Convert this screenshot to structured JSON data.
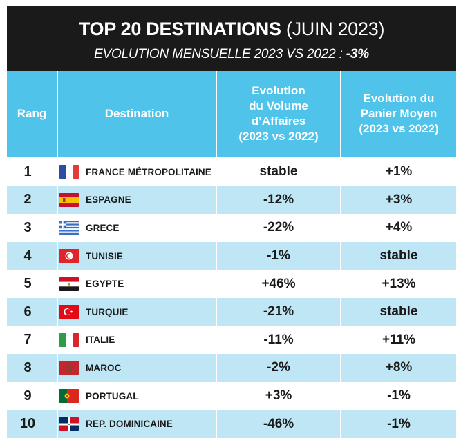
{
  "title": {
    "bold": "TOP 20 DESTINATIONS",
    "light": " (JUIN 2023)"
  },
  "subtitle": {
    "text": "EVOLUTION MENSUELLE 2023 VS 2022 : ",
    "value": "-3%"
  },
  "colors": {
    "header": "#4fc3e9",
    "alt_row": "#bfe6f4",
    "title_bg": "#1a1a1a"
  },
  "headers": {
    "rang": "Rang",
    "destination": "Destination",
    "volume": [
      "Evolution",
      "du Volume",
      "d’Affaires",
      "(2023 vs 2022)"
    ],
    "panier": [
      "Evolution du",
      "Panier Moyen",
      "(2023 vs 2022)"
    ]
  },
  "rows": [
    {
      "rank": "1",
      "flag": "france-flag-icon",
      "destination": "FRANCE MÉTROPOLITAINE",
      "volume": "stable",
      "panier": "+1%"
    },
    {
      "rank": "2",
      "flag": "spain-flag-icon",
      "destination": "ESPAGNE",
      "volume": "-12%",
      "panier": "+3%"
    },
    {
      "rank": "3",
      "flag": "greece-flag-icon",
      "destination": "GRECE",
      "volume": "-22%",
      "panier": "+4%"
    },
    {
      "rank": "4",
      "flag": "tunisia-flag-icon",
      "destination": "TUNISIE",
      "volume": "-1%",
      "panier": "stable"
    },
    {
      "rank": "5",
      "flag": "egypt-flag-icon",
      "destination": "EGYPTE",
      "volume": "+46%",
      "panier": "+13%"
    },
    {
      "rank": "6",
      "flag": "turkey-flag-icon",
      "destination": "TURQUIE",
      "volume": "-21%",
      "panier": "stable"
    },
    {
      "rank": "7",
      "flag": "italy-flag-icon",
      "destination": "ITALIE",
      "volume": "-11%",
      "panier": "+11%"
    },
    {
      "rank": "8",
      "flag": "morocco-flag-icon",
      "destination": "MAROC",
      "volume": "-2%",
      "panier": "+8%"
    },
    {
      "rank": "9",
      "flag": "portugal-flag-icon",
      "destination": "PORTUGAL",
      "volume": "+3%",
      "panier": "-1%"
    },
    {
      "rank": "10",
      "flag": "dominican-republic-flag-icon",
      "destination": "REP. DOMINICAINE",
      "volume": "-46%",
      "panier": "-1%"
    }
  ]
}
